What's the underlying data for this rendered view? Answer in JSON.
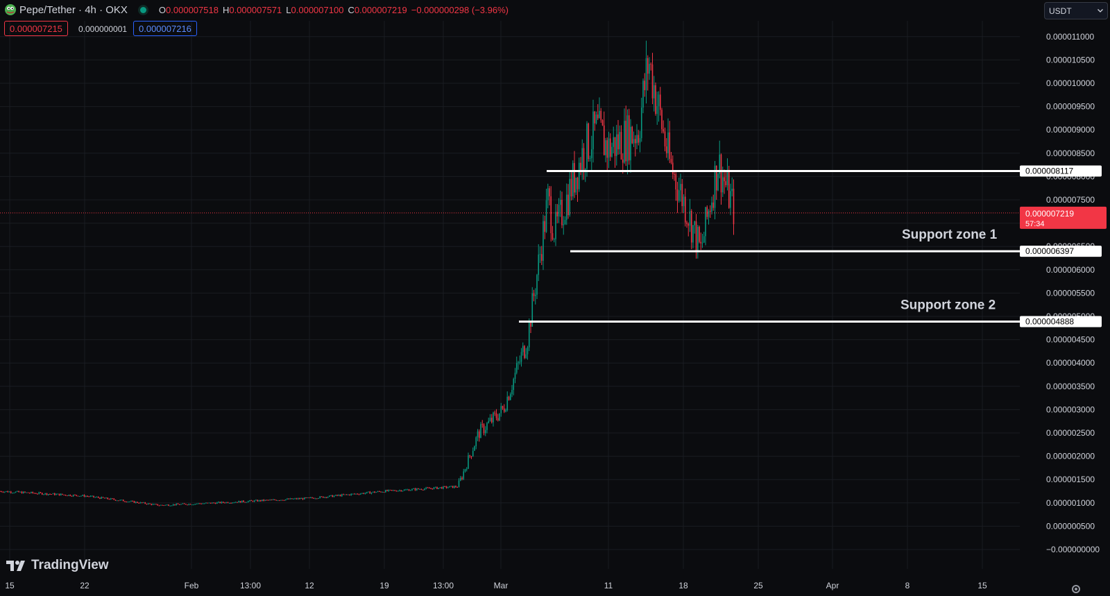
{
  "header": {
    "symbol": "Pepe/Tether · 4h · OKX",
    "ohlc": {
      "o_label": "O",
      "o": "0.000007518",
      "h_label": "H",
      "h": "0.000007571",
      "l_label": "L",
      "l": "0.000007100",
      "c_label": "C",
      "c": "0.000007219",
      "change": "−0.000000298 (−3.96%)"
    },
    "sell_price": "0.000007215",
    "spread": "0.000000001",
    "buy_price": "0.000007216"
  },
  "currency_select": {
    "value": "USDT",
    "icon": "chevron-down-icon"
  },
  "branding": {
    "logo_text": "TradingView"
  },
  "colors": {
    "background": "#0b0c0f",
    "up": "#089981",
    "down": "#f23645",
    "grid": "#1a1c22",
    "axis_text": "#d1d4dc"
  },
  "chart_data": {
    "type": "candlestick",
    "interval": "4h",
    "y_unit": "USDT",
    "ylim": [
      -1e-07,
      1.14e-05
    ],
    "y_ticks": [
      "−0.000000000",
      "0.000000500",
      "0.000001000",
      "0.000001500",
      "0.000002000",
      "0.000002500",
      "0.000003000",
      "0.000003500",
      "0.000004000",
      "0.000004500",
      "0.000005000",
      "0.000005500",
      "0.000006000",
      "0.000006500",
      "0.000007000",
      "0.000007500",
      "0.000008000",
      "0.000008500",
      "0.000009000",
      "0.000009500",
      "0.000010000",
      "0.000010500",
      "0.000011000"
    ],
    "x_ticks": [
      "15",
      "22",
      "Feb",
      "13:00",
      "12",
      "19",
      "13:00",
      "Mar",
      "11",
      "18",
      "25",
      "Apr",
      "8",
      "15"
    ],
    "approx_close_path": [
      {
        "date": "Jan 15",
        "close": 1.25e-06
      },
      {
        "date": "Jan 22",
        "close": 1.15e-06
      },
      {
        "date": "Jan 29",
        "close": 9.5e-07
      },
      {
        "date": "Feb 5",
        "close": 1e-06
      },
      {
        "date": "Feb 12",
        "close": 1.1e-06
      },
      {
        "date": "Feb 19",
        "close": 1.25e-06
      },
      {
        "date": "Feb 26",
        "close": 1.35e-06
      },
      {
        "date": "Feb 28",
        "close": 2.5e-06
      },
      {
        "date": "Mar 2",
        "close": 3e-06
      },
      {
        "date": "Mar 3",
        "close": 4.5e-06
      },
      {
        "date": "Mar 5",
        "close": 7.5e-06
      },
      {
        "date": "Mar 6",
        "close": 6.8e-06
      },
      {
        "date": "Mar 8",
        "close": 8.5e-06
      },
      {
        "date": "Mar 9",
        "close": 9e-06
      },
      {
        "date": "Mar 11",
        "close": 8.6e-06
      },
      {
        "date": "Mar 13",
        "close": 9e-06
      },
      {
        "date": "Mar 14",
        "close": 1.05e-05
      },
      {
        "date": "Mar 16",
        "close": 8.3e-06
      },
      {
        "date": "Mar 18",
        "close": 7.5e-06
      },
      {
        "date": "Mar 19",
        "close": 6.4e-06
      },
      {
        "date": "Mar 21",
        "close": 8.3e-06
      },
      {
        "date": "Mar 22",
        "close": 7.2e-06
      }
    ],
    "current_price": {
      "label": "0.000007219",
      "value": 7.219e-06,
      "countdown": "57:34"
    },
    "horizontal_lines": [
      {
        "value": 8.117e-06,
        "label": "0.000008117",
        "annotation": ""
      },
      {
        "value": 6.397e-06,
        "label": "0.000006397",
        "annotation": "Support zone 1"
      },
      {
        "value": 4.888e-06,
        "label": "0.000004888",
        "annotation": "Support zone 2"
      }
    ]
  }
}
